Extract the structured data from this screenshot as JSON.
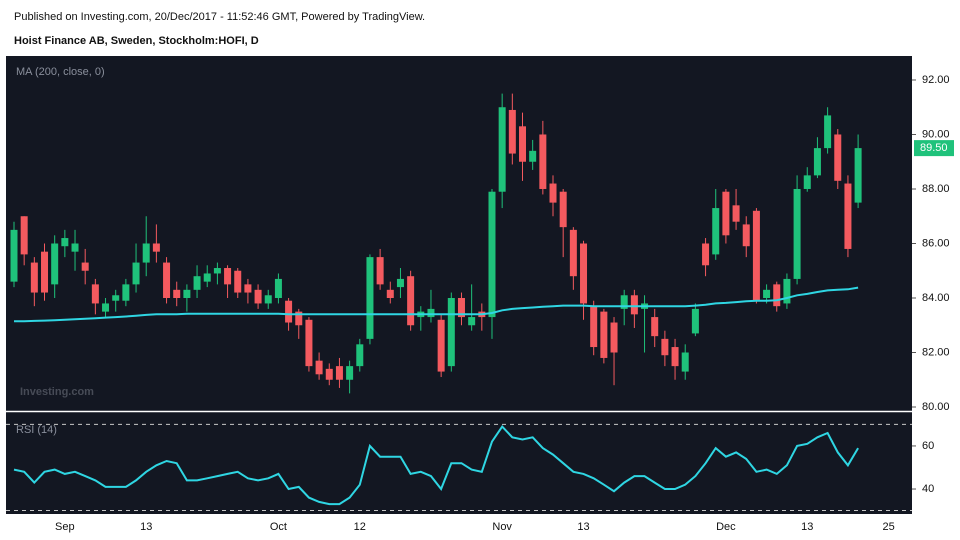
{
  "chart_data": {
    "type": "candlestick",
    "header": "Published on Investing.com, 20/Dec/2017 - 11:52:46 GMT, Powered by TradingView.",
    "title": "Hoist Finance AB, Sweden, Stockholm:HOFI, D",
    "watermark": "Investing.com",
    "categories": [
      null,
      null,
      null,
      null,
      null,
      "Sep",
      null,
      null,
      null,
      null,
      null,
      null,
      null,
      "13",
      null,
      null,
      null,
      null,
      null,
      null,
      null,
      null,
      null,
      null,
      null,
      null,
      "Oct",
      null,
      null,
      null,
      null,
      null,
      null,
      null,
      "12",
      null,
      null,
      null,
      null,
      null,
      null,
      null,
      null,
      null,
      null,
      null,
      null,
      null,
      "Nov",
      null,
      null,
      null,
      null,
      null,
      null,
      null,
      "13",
      null,
      null,
      null,
      null,
      null,
      null,
      null,
      null,
      null,
      null,
      null,
      null,
      null,
      "Dec",
      null,
      null,
      null,
      null,
      null,
      null,
      null,
      "13",
      null,
      null,
      null,
      null,
      null,
      null,
      null,
      "25"
    ],
    "open": [
      84.6,
      87.0,
      85.3,
      85.7,
      84.5,
      85.9,
      85.7,
      85.3,
      84.5,
      83.5,
      83.9,
      83.9,
      84.5,
      85.3,
      86.0,
      85.3,
      84.3,
      84.0,
      84.3,
      84.6,
      84.9,
      85.1,
      85.0,
      84.5,
      84.3,
      83.8,
      84.0,
      83.9,
      83.5,
      83.2,
      81.7,
      81.4,
      81.5,
      81.0,
      81.5,
      82.5,
      85.5,
      84.3,
      84.4,
      84.8,
      83.3,
      83.3,
      83.2,
      81.5,
      84.0,
      83.0,
      83.5,
      83.3,
      87.9,
      90.9,
      90.3,
      89.0,
      90.0,
      88.2,
      87.9,
      86.5,
      86.0,
      83.7,
      83.5,
      83.1,
      83.6,
      84.1,
      83.6,
      83.3,
      82.5,
      82.2,
      81.3,
      82.7,
      86.0,
      85.6,
      87.9,
      87.4,
      86.7,
      87.2,
      84.0,
      84.5,
      83.8,
      84.7,
      88.0,
      88.5,
      89.5,
      90.0,
      88.2,
      87.5,
      null,
      null,
      null
    ],
    "high": [
      86.8,
      87.0,
      85.5,
      86.0,
      86.3,
      86.5,
      86.5,
      85.8,
      84.7,
      84.0,
      84.3,
      84.7,
      86.0,
      87.0,
      86.7,
      85.5,
      84.6,
      84.5,
      85.2,
      85.2,
      85.3,
      85.2,
      85.1,
      84.7,
      84.5,
      84.3,
      84.9,
      84.0,
      83.6,
      83.3,
      82.0,
      81.6,
      81.8,
      81.7,
      82.5,
      85.6,
      85.8,
      84.6,
      85.1,
      85.0,
      83.7,
      84.3,
      83.4,
      84.2,
      84.2,
      84.5,
      83.8,
      88.0,
      91.5,
      91.5,
      90.8,
      89.8,
      90.5,
      88.5,
      88.0,
      86.6,
      86.1,
      83.9,
      83.6,
      83.3,
      84.3,
      84.3,
      84.1,
      83.6,
      82.8,
      82.5,
      82.3,
      83.8,
      86.2,
      88.0,
      88.0,
      88.0,
      87.0,
      87.3,
      84.5,
      84.6,
      84.9,
      88.5,
      88.8,
      89.9,
      91.0,
      90.2,
      88.5,
      90.0,
      null,
      null,
      null
    ],
    "low": [
      84.4,
      85.2,
      83.7,
      83.9,
      84.0,
      85.5,
      85.0,
      84.5,
      83.4,
      83.3,
      83.5,
      83.7,
      84.2,
      84.8,
      85.3,
      83.8,
      83.7,
      83.5,
      84.0,
      84.4,
      84.5,
      84.0,
      84.0,
      83.8,
      83.6,
      83.6,
      83.8,
      82.8,
      82.5,
      81.3,
      81.0,
      80.8,
      80.7,
      80.5,
      81.3,
      82.3,
      84.3,
      83.8,
      84.0,
      82.8,
      82.8,
      83.1,
      81.1,
      81.3,
      83.0,
      82.8,
      82.8,
      82.5,
      87.3,
      88.9,
      88.3,
      88.7,
      87.8,
      87.0,
      85.5,
      84.3,
      83.2,
      81.9,
      81.6,
      80.8,
      83.0,
      82.9,
      82.0,
      82.2,
      81.5,
      81.0,
      81.0,
      82.6,
      84.8,
      85.4,
      86.0,
      86.5,
      85.5,
      83.8,
      83.8,
      83.5,
      83.6,
      84.5,
      87.9,
      88.4,
      89.3,
      88.0,
      85.5,
      87.3,
      null,
      null,
      null
    ],
    "close": [
      86.5,
      85.6,
      84.2,
      84.2,
      86.0,
      86.2,
      86.0,
      85.0,
      83.8,
      83.8,
      84.1,
      84.5,
      85.3,
      86.0,
      85.7,
      84.0,
      84.0,
      84.3,
      84.8,
      84.9,
      85.1,
      84.5,
      84.2,
      84.2,
      83.8,
      84.1,
      84.7,
      83.1,
      83.0,
      81.5,
      81.2,
      81.0,
      81.0,
      81.5,
      82.3,
      85.5,
      84.5,
      84.0,
      84.7,
      83.0,
      83.5,
      83.6,
      81.3,
      84.0,
      83.3,
      83.3,
      83.3,
      87.9,
      91.0,
      89.3,
      89.0,
      89.4,
      88.0,
      87.5,
      86.6,
      84.8,
      83.8,
      82.2,
      81.8,
      82.0,
      84.1,
      83.4,
      83.8,
      82.6,
      81.9,
      81.5,
      82.0,
      83.6,
      85.2,
      87.3,
      86.3,
      86.8,
      85.9,
      83.9,
      84.3,
      83.7,
      84.7,
      88.0,
      88.5,
      89.5,
      90.7,
      88.3,
      85.8,
      89.5,
      null,
      null,
      null
    ],
    "up_color": "#1fc27b",
    "down_color": "#f45a5f",
    "ma": {
      "name": "MA (200, close, 0)",
      "color": "#2fd6e3",
      "values": [
        83.15,
        83.15,
        83.16,
        83.17,
        83.18,
        83.2,
        83.22,
        83.24,
        83.26,
        83.28,
        83.3,
        83.32,
        83.35,
        83.38,
        83.4,
        83.4,
        83.4,
        83.42,
        83.42,
        83.42,
        83.42,
        83.42,
        83.42,
        83.42,
        83.42,
        83.42,
        83.42,
        83.4,
        83.4,
        83.4,
        83.4,
        83.4,
        83.4,
        83.4,
        83.4,
        83.4,
        83.4,
        83.4,
        83.4,
        83.4,
        83.4,
        83.4,
        83.4,
        83.4,
        83.4,
        83.4,
        83.4,
        83.45,
        83.55,
        83.6,
        83.63,
        83.65,
        83.68,
        83.7,
        83.72,
        83.72,
        83.72,
        83.7,
        83.7,
        83.7,
        83.7,
        83.7,
        83.7,
        83.7,
        83.7,
        83.7,
        83.7,
        83.72,
        83.75,
        83.8,
        83.82,
        83.85,
        83.88,
        83.9,
        83.9,
        83.92,
        84.0,
        84.1,
        84.15,
        84.22,
        84.28,
        84.3,
        84.32,
        84.38,
        null,
        null,
        null
      ]
    },
    "ylim": [
      79.89,
      92.88
    ],
    "yticks": [
      {
        "value": 80,
        "label": "80.00"
      },
      {
        "value": 82,
        "label": "82.00"
      },
      {
        "value": 84,
        "label": "84.00"
      },
      {
        "value": 86,
        "label": "86.00"
      },
      {
        "value": 88,
        "label": "88.00"
      },
      {
        "value": 90,
        "label": "90.00"
      },
      {
        "value": 92,
        "label": "92.00"
      }
    ],
    "last_label": {
      "value": 89.5,
      "label": "89.50"
    },
    "rsi": {
      "name": "RSI (14)",
      "color": "#2fd6e3",
      "values": [
        49,
        48,
        43,
        48,
        49,
        47,
        48,
        46,
        44,
        41,
        41,
        41,
        44,
        48,
        51,
        53,
        52,
        44,
        44,
        45,
        46,
        47,
        48,
        45,
        44,
        45,
        47,
        40,
        41,
        36,
        34,
        33,
        33,
        36,
        42,
        60,
        55,
        55,
        55,
        47,
        48,
        46,
        40,
        52,
        52,
        49,
        48,
        62,
        69,
        64,
        63,
        64,
        59,
        56,
        52,
        48,
        47,
        45,
        42,
        39,
        43,
        46,
        46,
        43,
        40,
        40,
        42,
        46,
        52,
        59,
        55,
        57,
        54,
        48,
        49,
        47,
        51,
        60,
        61,
        64,
        66,
        57,
        51,
        59,
        null,
        null,
        null
      ],
      "ylim": [
        28.4,
        75.3
      ],
      "yticks": [
        40,
        60
      ],
      "bands": [
        30,
        70
      ]
    }
  }
}
